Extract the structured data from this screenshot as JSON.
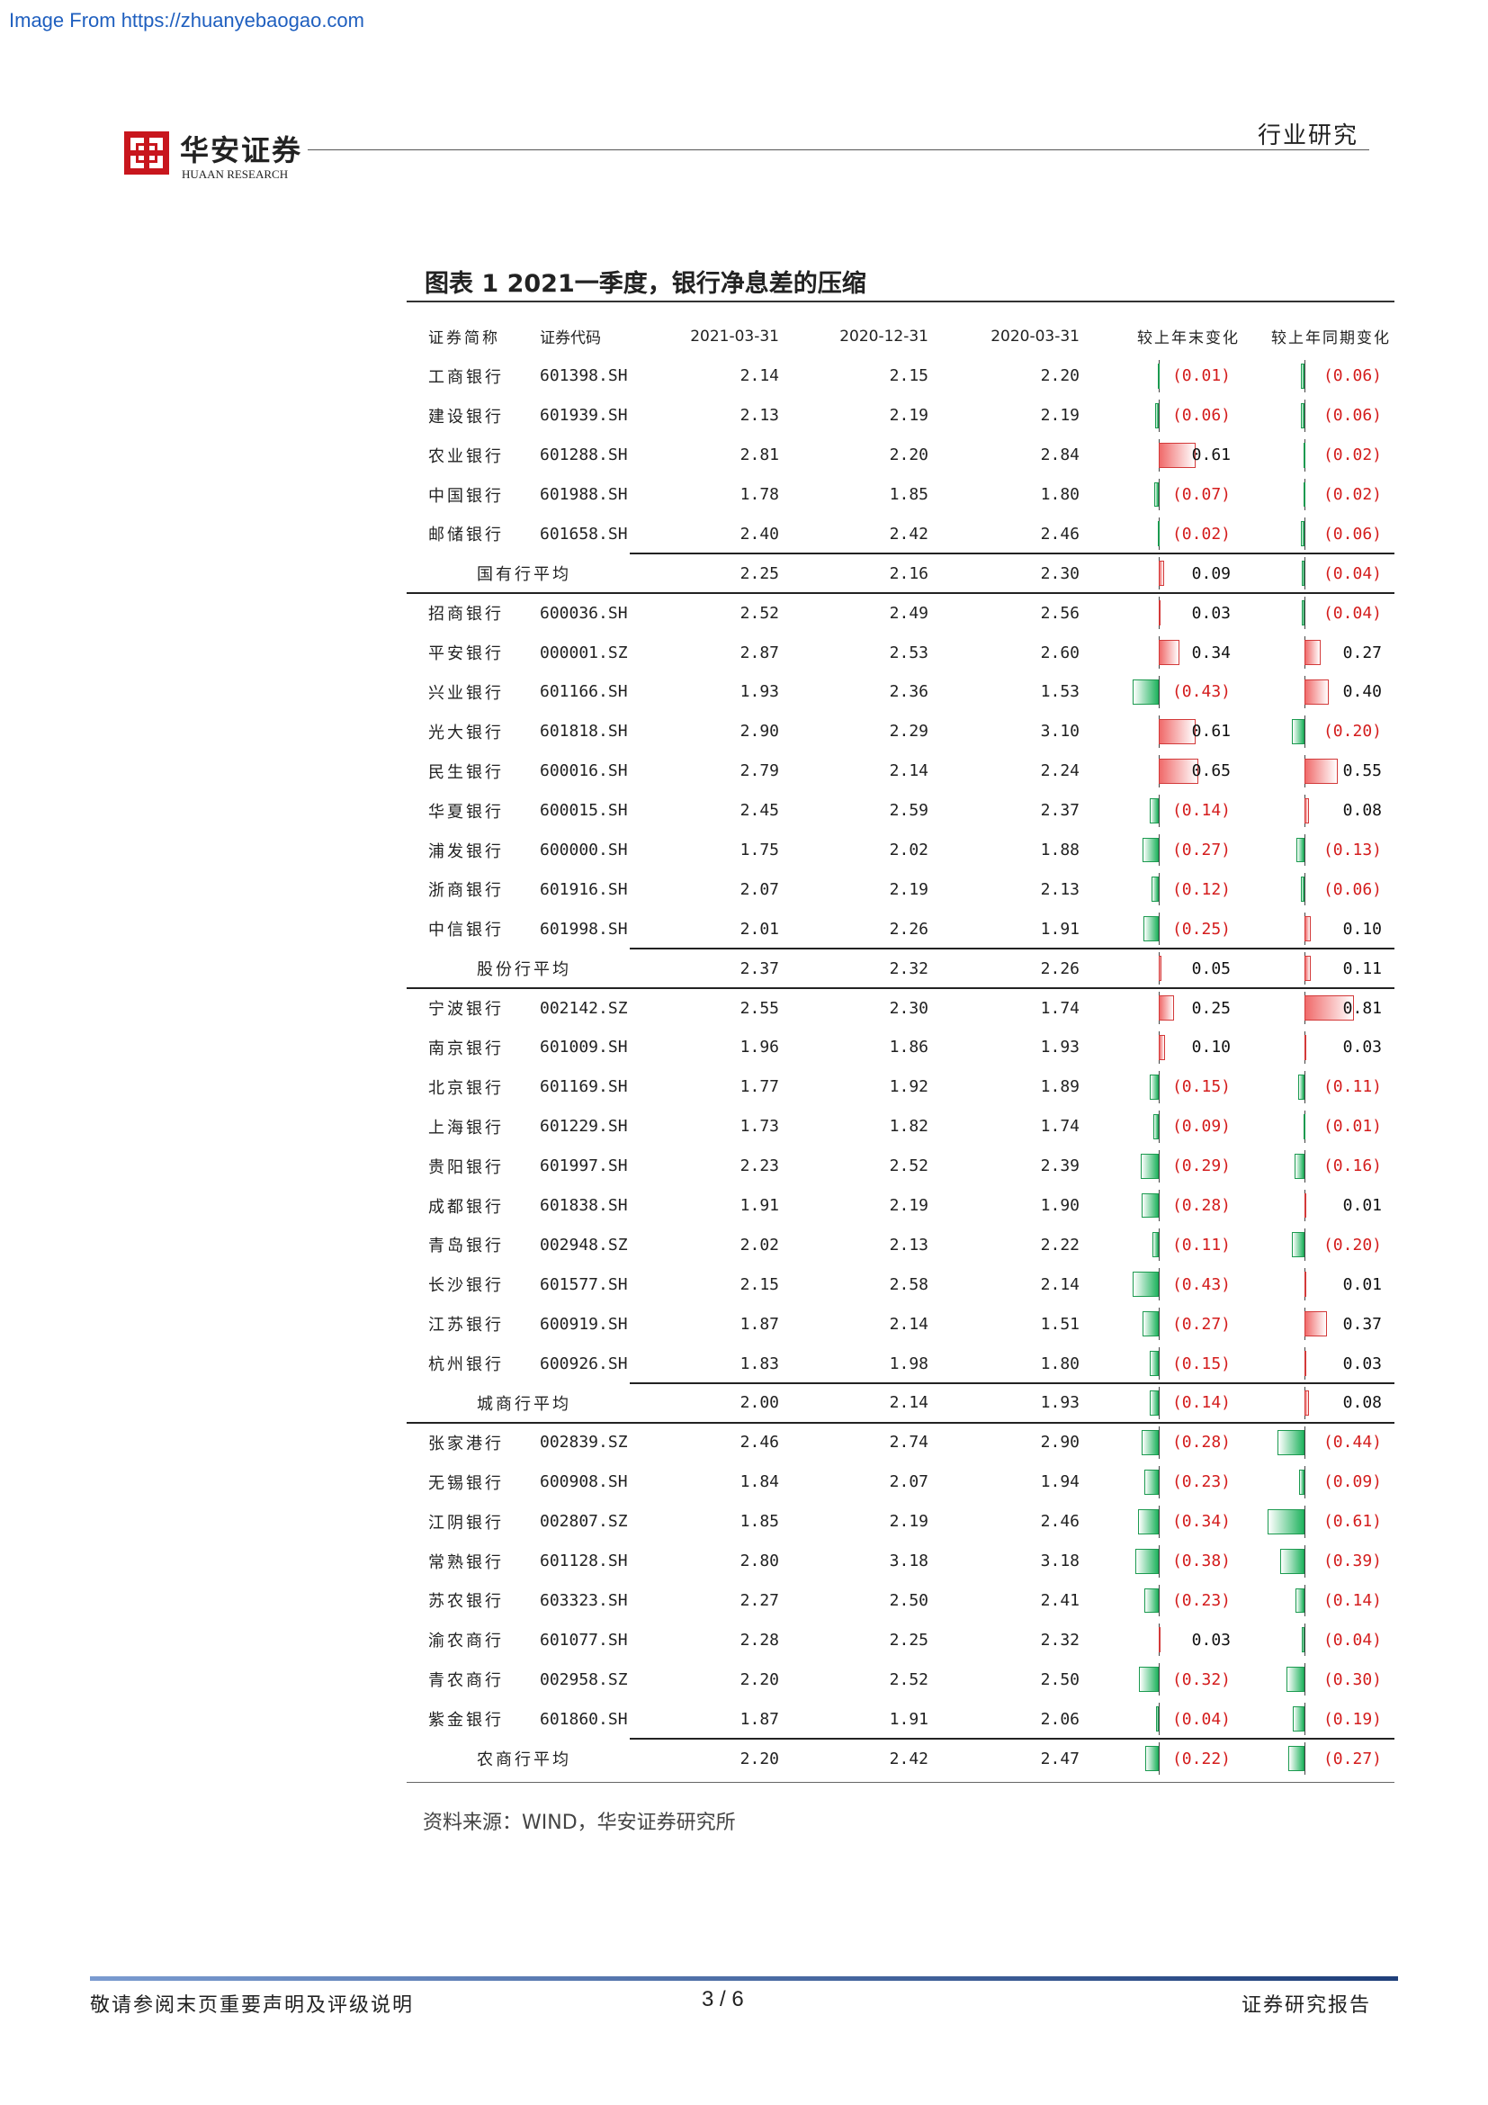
{
  "watermark": "Image From https://zhuanyebaogao.com",
  "header": {
    "logo_cn": "华安证券",
    "logo_en": "HUAAN RESEARCH",
    "section": "行业研究"
  },
  "figure": {
    "title": "图表 1 2021一季度，银行净息差的压缩",
    "columns": [
      "证券简称",
      "证券代码",
      "2021-03-31",
      "2020-12-31",
      "2020-03-31",
      "较上年末变化",
      "较上年同期变化"
    ],
    "groups": [
      {
        "rows": [
          {
            "name": "工商银行",
            "code": "601398.SH",
            "v1": "2.14",
            "v2": "2.15",
            "v3": "2.20",
            "d1": -0.01,
            "d1_text": "(0.01)",
            "d2": -0.06,
            "d2_text": "(0.06)"
          },
          {
            "name": "建设银行",
            "code": "601939.SH",
            "v1": "2.13",
            "v2": "2.19",
            "v3": "2.19",
            "d1": -0.06,
            "d1_text": "(0.06)",
            "d2": -0.06,
            "d2_text": "(0.06)"
          },
          {
            "name": "农业银行",
            "code": "601288.SH",
            "v1": "2.81",
            "v2": "2.20",
            "v3": "2.84",
            "d1": 0.61,
            "d1_text": "0.61",
            "d2": -0.02,
            "d2_text": "(0.02)"
          },
          {
            "name": "中国银行",
            "code": "601988.SH",
            "v1": "1.78",
            "v2": "1.85",
            "v3": "1.80",
            "d1": -0.07,
            "d1_text": "(0.07)",
            "d2": -0.02,
            "d2_text": "(0.02)"
          },
          {
            "name": "邮储银行",
            "code": "601658.SH",
            "v1": "2.40",
            "v2": "2.42",
            "v3": "2.46",
            "d1": -0.02,
            "d1_text": "(0.02)",
            "d2": -0.06,
            "d2_text": "(0.06)"
          }
        ],
        "avg": {
          "name": "国有行平均",
          "v1": "2.25",
          "v2": "2.16",
          "v3": "2.30",
          "d1": 0.09,
          "d1_text": "0.09",
          "d2": -0.04,
          "d2_text": "(0.04)"
        }
      },
      {
        "rows": [
          {
            "name": "招商银行",
            "code": "600036.SH",
            "v1": "2.52",
            "v2": "2.49",
            "v3": "2.56",
            "d1": 0.03,
            "d1_text": "0.03",
            "d2": -0.04,
            "d2_text": "(0.04)"
          },
          {
            "name": "平安银行",
            "code": "000001.SZ",
            "v1": "2.87",
            "v2": "2.53",
            "v3": "2.60",
            "d1": 0.34,
            "d1_text": "0.34",
            "d2": 0.27,
            "d2_text": "0.27"
          },
          {
            "name": "兴业银行",
            "code": "601166.SH",
            "v1": "1.93",
            "v2": "2.36",
            "v3": "1.53",
            "d1": -0.43,
            "d1_text": "(0.43)",
            "d2": 0.4,
            "d2_text": "0.40"
          },
          {
            "name": "光大银行",
            "code": "601818.SH",
            "v1": "2.90",
            "v2": "2.29",
            "v3": "3.10",
            "d1": 0.61,
            "d1_text": "0.61",
            "d2": -0.2,
            "d2_text": "(0.20)"
          },
          {
            "name": "民生银行",
            "code": "600016.SH",
            "v1": "2.79",
            "v2": "2.14",
            "v3": "2.24",
            "d1": 0.65,
            "d1_text": "0.65",
            "d2": 0.55,
            "d2_text": "0.55"
          },
          {
            "name": "华夏银行",
            "code": "600015.SH",
            "v1": "2.45",
            "v2": "2.59",
            "v3": "2.37",
            "d1": -0.14,
            "d1_text": "(0.14)",
            "d2": 0.08,
            "d2_text": "0.08"
          },
          {
            "name": "浦发银行",
            "code": "600000.SH",
            "v1": "1.75",
            "v2": "2.02",
            "v3": "1.88",
            "d1": -0.27,
            "d1_text": "(0.27)",
            "d2": -0.13,
            "d2_text": "(0.13)"
          },
          {
            "name": "浙商银行",
            "code": "601916.SH",
            "v1": "2.07",
            "v2": "2.19",
            "v3": "2.13",
            "d1": -0.12,
            "d1_text": "(0.12)",
            "d2": -0.06,
            "d2_text": "(0.06)"
          },
          {
            "name": "中信银行",
            "code": "601998.SH",
            "v1": "2.01",
            "v2": "2.26",
            "v3": "1.91",
            "d1": -0.25,
            "d1_text": "(0.25)",
            "d2": 0.1,
            "d2_text": "0.10"
          }
        ],
        "avg": {
          "name": "股份行平均",
          "v1": "2.37",
          "v2": "2.32",
          "v3": "2.26",
          "d1": 0.05,
          "d1_text": "0.05",
          "d2": 0.11,
          "d2_text": "0.11"
        }
      },
      {
        "rows": [
          {
            "name": "宁波银行",
            "code": "002142.SZ",
            "v1": "2.55",
            "v2": "2.30",
            "v3": "1.74",
            "d1": 0.25,
            "d1_text": "0.25",
            "d2": 0.81,
            "d2_text": "0.81"
          },
          {
            "name": "南京银行",
            "code": "601009.SH",
            "v1": "1.96",
            "v2": "1.86",
            "v3": "1.93",
            "d1": 0.1,
            "d1_text": "0.10",
            "d2": 0.03,
            "d2_text": "0.03"
          },
          {
            "name": "北京银行",
            "code": "601169.SH",
            "v1": "1.77",
            "v2": "1.92",
            "v3": "1.89",
            "d1": -0.15,
            "d1_text": "(0.15)",
            "d2": -0.11,
            "d2_text": "(0.11)"
          },
          {
            "name": "上海银行",
            "code": "601229.SH",
            "v1": "1.73",
            "v2": "1.82",
            "v3": "1.74",
            "d1": -0.09,
            "d1_text": "(0.09)",
            "d2": -0.01,
            "d2_text": "(0.01)"
          },
          {
            "name": "贵阳银行",
            "code": "601997.SH",
            "v1": "2.23",
            "v2": "2.52",
            "v3": "2.39",
            "d1": -0.29,
            "d1_text": "(0.29)",
            "d2": -0.16,
            "d2_text": "(0.16)"
          },
          {
            "name": "成都银行",
            "code": "601838.SH",
            "v1": "1.91",
            "v2": "2.19",
            "v3": "1.90",
            "d1": -0.28,
            "d1_text": "(0.28)",
            "d2": 0.01,
            "d2_text": "0.01"
          },
          {
            "name": "青岛银行",
            "code": "002948.SZ",
            "v1": "2.02",
            "v2": "2.13",
            "v3": "2.22",
            "d1": -0.11,
            "d1_text": "(0.11)",
            "d2": -0.2,
            "d2_text": "(0.20)"
          },
          {
            "name": "长沙银行",
            "code": "601577.SH",
            "v1": "2.15",
            "v2": "2.58",
            "v3": "2.14",
            "d1": -0.43,
            "d1_text": "(0.43)",
            "d2": 0.01,
            "d2_text": "0.01"
          },
          {
            "name": "江苏银行",
            "code": "600919.SH",
            "v1": "1.87",
            "v2": "2.14",
            "v3": "1.51",
            "d1": -0.27,
            "d1_text": "(0.27)",
            "d2": 0.37,
            "d2_text": "0.37"
          },
          {
            "name": "杭州银行",
            "code": "600926.SH",
            "v1": "1.83",
            "v2": "1.98",
            "v3": "1.80",
            "d1": -0.15,
            "d1_text": "(0.15)",
            "d2": 0.03,
            "d2_text": "0.03"
          }
        ],
        "avg": {
          "name": "城商行平均",
          "v1": "2.00",
          "v2": "2.14",
          "v3": "1.93",
          "d1": -0.14,
          "d1_text": "(0.14)",
          "d2": 0.08,
          "d2_text": "0.08"
        }
      },
      {
        "rows": [
          {
            "name": "张家港行",
            "code": "002839.SZ",
            "v1": "2.46",
            "v2": "2.74",
            "v3": "2.90",
            "d1": -0.28,
            "d1_text": "(0.28)",
            "d2": -0.44,
            "d2_text": "(0.44)"
          },
          {
            "name": "无锡银行",
            "code": "600908.SH",
            "v1": "1.84",
            "v2": "2.07",
            "v3": "1.94",
            "d1": -0.23,
            "d1_text": "(0.23)",
            "d2": -0.09,
            "d2_text": "(0.09)"
          },
          {
            "name": "江阴银行",
            "code": "002807.SZ",
            "v1": "1.85",
            "v2": "2.19",
            "v3": "2.46",
            "d1": -0.34,
            "d1_text": "(0.34)",
            "d2": -0.61,
            "d2_text": "(0.61)"
          },
          {
            "name": "常熟银行",
            "code": "601128.SH",
            "v1": "2.80",
            "v2": "3.18",
            "v3": "3.18",
            "d1": -0.38,
            "d1_text": "(0.38)",
            "d2": -0.39,
            "d2_text": "(0.39)"
          },
          {
            "name": "苏农银行",
            "code": "603323.SH",
            "v1": "2.27",
            "v2": "2.50",
            "v3": "2.41",
            "d1": -0.23,
            "d1_text": "(0.23)",
            "d2": -0.14,
            "d2_text": "(0.14)"
          },
          {
            "name": "渝农商行",
            "code": "601077.SH",
            "v1": "2.28",
            "v2": "2.25",
            "v3": "2.32",
            "d1": 0.03,
            "d1_text": "0.03",
            "d2": -0.04,
            "d2_text": "(0.04)"
          },
          {
            "name": "青农商行",
            "code": "002958.SZ",
            "v1": "2.20",
            "v2": "2.52",
            "v3": "2.50",
            "d1": -0.32,
            "d1_text": "(0.32)",
            "d2": -0.3,
            "d2_text": "(0.30)"
          },
          {
            "name": "紫金银行",
            "code": "601860.SH",
            "v1": "1.87",
            "v2": "1.91",
            "v3": "2.06",
            "d1": -0.04,
            "d1_text": "(0.04)",
            "d2": -0.19,
            "d2_text": "(0.19)"
          }
        ],
        "avg": {
          "name": "农商行平均",
          "v1": "2.20",
          "v2": "2.42",
          "v3": "2.47",
          "d1": -0.22,
          "d1_text": "(0.22)",
          "d2": -0.27,
          "d2_text": "(0.27)"
        }
      }
    ],
    "source": "资料来源：WIND，华安证券研究所"
  },
  "footer": {
    "left": "敬请参阅末页重要声明及评级说明",
    "page": "3 / 6",
    "right": "证券研究报告"
  },
  "colors": {
    "logo_red": "#c8161d",
    "neg_bar": "#22b460",
    "pos_bar": "#f06a6a",
    "neg_text": "#d41c1c"
  }
}
